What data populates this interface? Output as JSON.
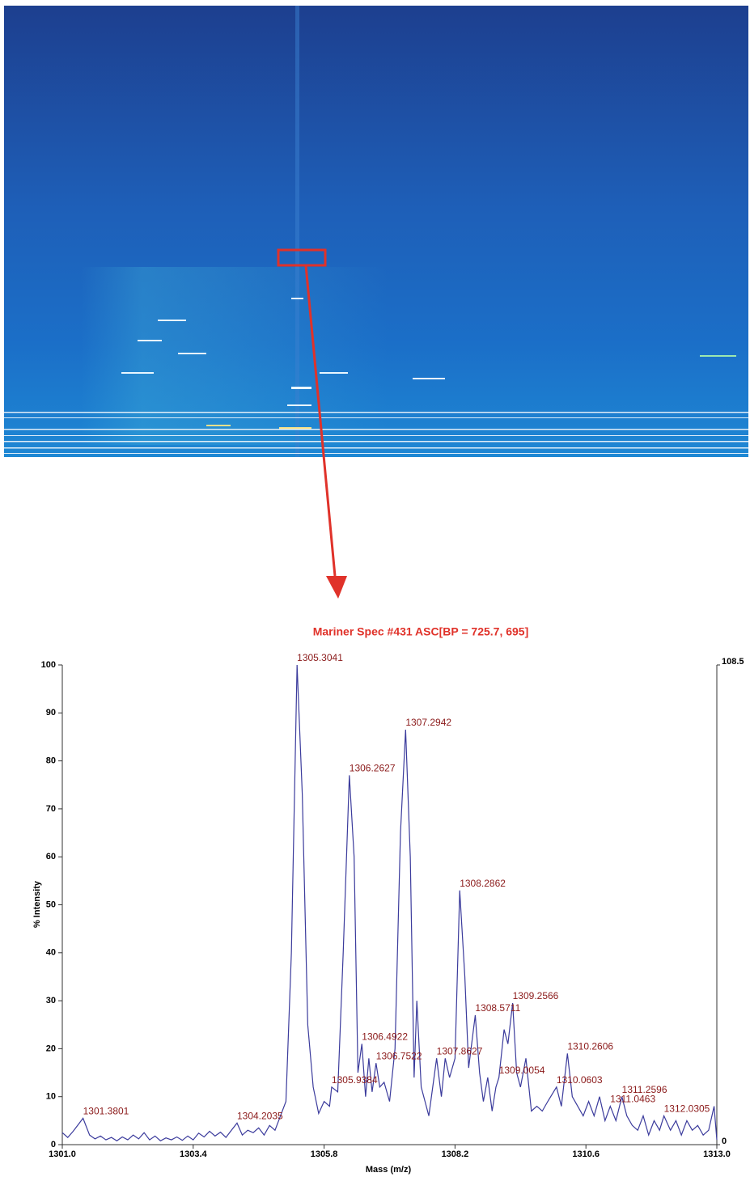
{
  "chart_data": {
    "type": "line",
    "title": "Mariner Spec #431 ASC[BP = 725.7, 695]",
    "x_label": "Mass (m/z)",
    "y_label": "% Intensity",
    "xlim": [
      1301,
      1313
    ],
    "ylim": [
      0,
      100
    ],
    "y2lim": [
      0,
      108.5
    ],
    "xticks": [
      {
        "value": 1301,
        "label": "1301.0"
      },
      1303.4,
      1305.8,
      1308.2,
      1310.6,
      {
        "value": 1313,
        "label": "1313.0"
      }
    ],
    "yticks": [
      0,
      10,
      20,
      30,
      40,
      50,
      60,
      70,
      80,
      90,
      100
    ],
    "y2ticks": [
      0,
      108.5
    ],
    "series": [
      {
        "color": "#3b3b9c",
        "x": [
          1301.0,
          1301.1,
          1301.2,
          1301.3801,
          1301.5,
          1301.6,
          1301.7,
          1301.8,
          1301.9,
          1302.0,
          1302.1,
          1302.2,
          1302.3,
          1302.4,
          1302.5,
          1302.6,
          1302.7,
          1302.8,
          1302.9,
          1303.0,
          1303.1,
          1303.2,
          1303.3,
          1303.4,
          1303.5,
          1303.6,
          1303.7,
          1303.8,
          1303.9,
          1304.0,
          1304.1,
          1304.2035,
          1304.3,
          1304.4,
          1304.5,
          1304.6,
          1304.7,
          1304.8,
          1304.9,
          1305.0,
          1305.1,
          1305.2,
          1305.3041,
          1305.4,
          1305.5,
          1305.6,
          1305.7,
          1305.8,
          1305.9,
          1305.9384,
          1306.05,
          1306.15,
          1306.2627,
          1306.35,
          1306.42,
          1306.4922,
          1306.56,
          1306.62,
          1306.68,
          1306.7522,
          1306.82,
          1306.9,
          1307.0,
          1307.1,
          1307.2,
          1307.2942,
          1307.38,
          1307.45,
          1307.5,
          1307.58,
          1307.65,
          1307.72,
          1307.8627,
          1307.95,
          1308.02,
          1308.1,
          1308.2,
          1308.2862,
          1308.38,
          1308.45,
          1308.5711,
          1308.65,
          1308.72,
          1308.8,
          1308.88,
          1308.95,
          1309.0054,
          1309.1,
          1309.17,
          1309.2566,
          1309.33,
          1309.4,
          1309.5,
          1309.6,
          1309.7,
          1309.8,
          1309.9,
          1310.0603,
          1310.15,
          1310.2606,
          1310.35,
          1310.45,
          1310.55,
          1310.65,
          1310.75,
          1310.85,
          1310.95,
          1311.0463,
          1311.15,
          1311.2596,
          1311.35,
          1311.45,
          1311.55,
          1311.65,
          1311.75,
          1311.85,
          1311.95,
          1312.0305,
          1312.15,
          1312.25,
          1312.35,
          1312.45,
          1312.55,
          1312.65,
          1312.75,
          1312.85,
          1312.95,
          1313.0
        ],
        "values": [
          2.5,
          1.5,
          2.8,
          5.5,
          2,
          1.2,
          1.8,
          1,
          1.5,
          0.8,
          1.6,
          1,
          2,
          1.2,
          2.5,
          1,
          1.8,
          0.8,
          1.4,
          1,
          1.6,
          0.9,
          1.8,
          1,
          2.4,
          1.6,
          2.8,
          1.8,
          2.6,
          1.5,
          3,
          4.5,
          2,
          3,
          2.5,
          3.5,
          2,
          4,
          3,
          6,
          9,
          40,
          100,
          73,
          25,
          12,
          6.5,
          9,
          8,
          12,
          11,
          40,
          77,
          60,
          15,
          21,
          10,
          18,
          11,
          17,
          12,
          13,
          9,
          20,
          65,
          86.5,
          60,
          14,
          30,
          12,
          9,
          6,
          18,
          10,
          18,
          14,
          18,
          53,
          35,
          16,
          27,
          15,
          9,
          14,
          7,
          12,
          14,
          24,
          21,
          29.5,
          15,
          12,
          18,
          7,
          8,
          7,
          9,
          12,
          8,
          19,
          10,
          8,
          6,
          9,
          6,
          10,
          5,
          8,
          5,
          10,
          6,
          4,
          3,
          6,
          2,
          5,
          3,
          6,
          3,
          5,
          2,
          5,
          3,
          4,
          2,
          3,
          8,
          1
        ]
      }
    ],
    "peak_labels": [
      {
        "x": 1301.3801,
        "y": 5.5
      },
      {
        "x": 1304.2035,
        "y": 4.5
      },
      {
        "x": 1305.3041,
        "y": 100
      },
      {
        "x": 1305.9384,
        "y": 12
      },
      {
        "x": 1306.2627,
        "y": 77
      },
      {
        "x": 1306.4922,
        "y": 21
      },
      {
        "x": 1306.7522,
        "y": 17
      },
      {
        "x": 1307.2942,
        "y": 86.5
      },
      {
        "x": 1307.8627,
        "y": 18
      },
      {
        "x": 1308.2862,
        "y": 53
      },
      {
        "x": 1308.5711,
        "y": 27
      },
      {
        "x": 1309.0054,
        "y": 14
      },
      {
        "x": 1309.2566,
        "y": 29.5
      },
      {
        "x": 1310.0603,
        "y": 12
      },
      {
        "x": 1310.2606,
        "y": 19
      },
      {
        "x": 1311.0463,
        "y": 8
      },
      {
        "x": 1311.2596,
        "y": 10
      },
      {
        "x": 1312.0305,
        "y": 6
      }
    ]
  }
}
